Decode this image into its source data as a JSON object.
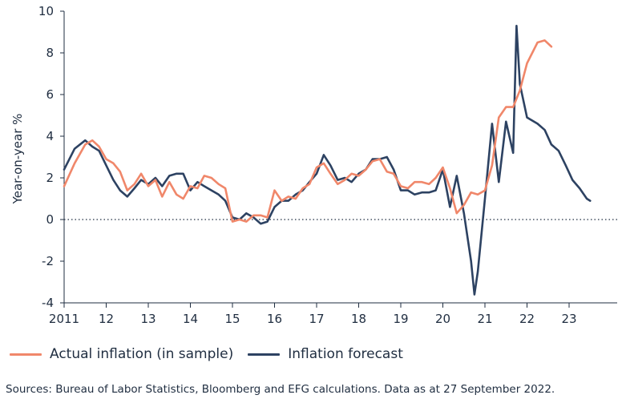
{
  "chart_data": {
    "type": "line",
    "ylabel": "Year-on-year %",
    "xlabel": "",
    "ylim": [
      -4,
      10
    ],
    "yticks": [
      -4,
      -2,
      0,
      2,
      4,
      6,
      8,
      10
    ],
    "xlim": [
      2011.0,
      2024.0
    ],
    "xticks": [
      {
        "x": 2011,
        "label": "2011"
      },
      {
        "x": 2012,
        "label": "12"
      },
      {
        "x": 2013,
        "label": "13"
      },
      {
        "x": 2014,
        "label": "14"
      },
      {
        "x": 2015,
        "label": "15"
      },
      {
        "x": 2016,
        "label": "16"
      },
      {
        "x": 2017,
        "label": "17"
      },
      {
        "x": 2018,
        "label": "18"
      },
      {
        "x": 2019,
        "label": "19"
      },
      {
        "x": 2020,
        "label": "20"
      },
      {
        "x": 2021,
        "label": "21"
      },
      {
        "x": 2022,
        "label": "22"
      },
      {
        "x": 2023,
        "label": "23"
      }
    ],
    "zero_line": "dotted",
    "grid": false,
    "series": [
      {
        "name": "Actual inflation (in sample)",
        "color": "#f0876a",
        "x": [
          2011.0,
          2011.25,
          2011.5,
          2011.67,
          2011.83,
          2012.0,
          2012.17,
          2012.33,
          2012.5,
          2012.67,
          2012.83,
          2013.0,
          2013.17,
          2013.33,
          2013.5,
          2013.67,
          2013.83,
          2014.0,
          2014.17,
          2014.33,
          2014.5,
          2014.67,
          2014.83,
          2015.0,
          2015.17,
          2015.33,
          2015.5,
          2015.67,
          2015.83,
          2016.0,
          2016.17,
          2016.33,
          2016.5,
          2016.67,
          2016.83,
          2017.0,
          2017.17,
          2017.33,
          2017.5,
          2017.67,
          2017.83,
          2018.0,
          2018.17,
          2018.33,
          2018.5,
          2018.67,
          2018.83,
          2019.0,
          2019.17,
          2019.33,
          2019.5,
          2019.67,
          2019.83,
          2020.0,
          2020.17,
          2020.33,
          2020.5,
          2020.67,
          2020.83,
          2021.0,
          2021.17,
          2021.33,
          2021.5,
          2021.67,
          2021.83,
          2022.0,
          2022.25,
          2022.42,
          2022.58
        ],
        "values": [
          1.6,
          2.7,
          3.6,
          3.8,
          3.5,
          2.9,
          2.7,
          2.3,
          1.4,
          1.7,
          2.2,
          1.6,
          1.9,
          1.1,
          1.8,
          1.2,
          1.0,
          1.6,
          1.5,
          2.1,
          2.0,
          1.7,
          1.5,
          -0.1,
          0.0,
          -0.1,
          0.2,
          0.2,
          0.1,
          1.4,
          0.9,
          1.1,
          1.0,
          1.5,
          1.7,
          2.5,
          2.7,
          2.2,
          1.7,
          1.9,
          2.2,
          2.1,
          2.4,
          2.8,
          2.9,
          2.3,
          2.2,
          1.6,
          1.5,
          1.8,
          1.8,
          1.7,
          2.0,
          2.5,
          1.5,
          0.3,
          0.7,
          1.3,
          1.2,
          1.4,
          2.6,
          4.9,
          5.4,
          5.4,
          6.2,
          7.5,
          8.5,
          8.6,
          8.3
        ]
      },
      {
        "name": "Inflation forecast",
        "color": "#2d4262",
        "x": [
          2011.0,
          2011.25,
          2011.5,
          2011.67,
          2011.83,
          2012.0,
          2012.17,
          2012.33,
          2012.5,
          2012.67,
          2012.83,
          2013.0,
          2013.17,
          2013.33,
          2013.5,
          2013.67,
          2013.83,
          2014.0,
          2014.17,
          2014.33,
          2014.5,
          2014.67,
          2014.83,
          2015.0,
          2015.17,
          2015.33,
          2015.5,
          2015.67,
          2015.83,
          2016.0,
          2016.17,
          2016.33,
          2016.5,
          2016.67,
          2016.83,
          2017.0,
          2017.17,
          2017.33,
          2017.5,
          2017.67,
          2017.83,
          2018.0,
          2018.17,
          2018.33,
          2018.5,
          2018.67,
          2018.83,
          2019.0,
          2019.17,
          2019.33,
          2019.5,
          2019.67,
          2019.83,
          2020.0,
          2020.17,
          2020.33,
          2020.5,
          2020.67,
          2020.75,
          2020.83,
          2021.0,
          2021.17,
          2021.33,
          2021.5,
          2021.67,
          2021.75,
          2021.83,
          2022.0,
          2022.25,
          2022.42,
          2022.58,
          2022.75,
          2022.92,
          2023.08,
          2023.25,
          2023.42,
          2023.5
        ],
        "values": [
          2.4,
          3.4,
          3.8,
          3.5,
          3.3,
          2.6,
          1.9,
          1.4,
          1.1,
          1.5,
          1.9,
          1.7,
          2.0,
          1.6,
          2.1,
          2.2,
          2.2,
          1.4,
          1.8,
          1.6,
          1.4,
          1.2,
          0.9,
          0.1,
          0.0,
          0.3,
          0.1,
          -0.2,
          -0.1,
          0.6,
          0.9,
          0.9,
          1.2,
          1.4,
          1.8,
          2.2,
          3.1,
          2.6,
          1.9,
          2.0,
          1.8,
          2.2,
          2.4,
          2.9,
          2.9,
          3.0,
          2.4,
          1.4,
          1.4,
          1.2,
          1.3,
          1.3,
          1.4,
          2.4,
          0.6,
          2.1,
          0.3,
          -2.0,
          -3.6,
          -2.5,
          1.0,
          4.6,
          1.8,
          4.7,
          3.2,
          9.3,
          6.5,
          4.9,
          4.6,
          4.3,
          3.6,
          3.3,
          2.6,
          1.9,
          1.5,
          1.0,
          0.9
        ]
      }
    ]
  },
  "legend": {
    "actual_label": "Actual inflation (in sample)",
    "forecast_label": "Inflation forecast"
  },
  "source_text": "Sources: Bureau of Labor Statistics, Bloomberg and EFG calculations. Data as at 27 September 2022."
}
